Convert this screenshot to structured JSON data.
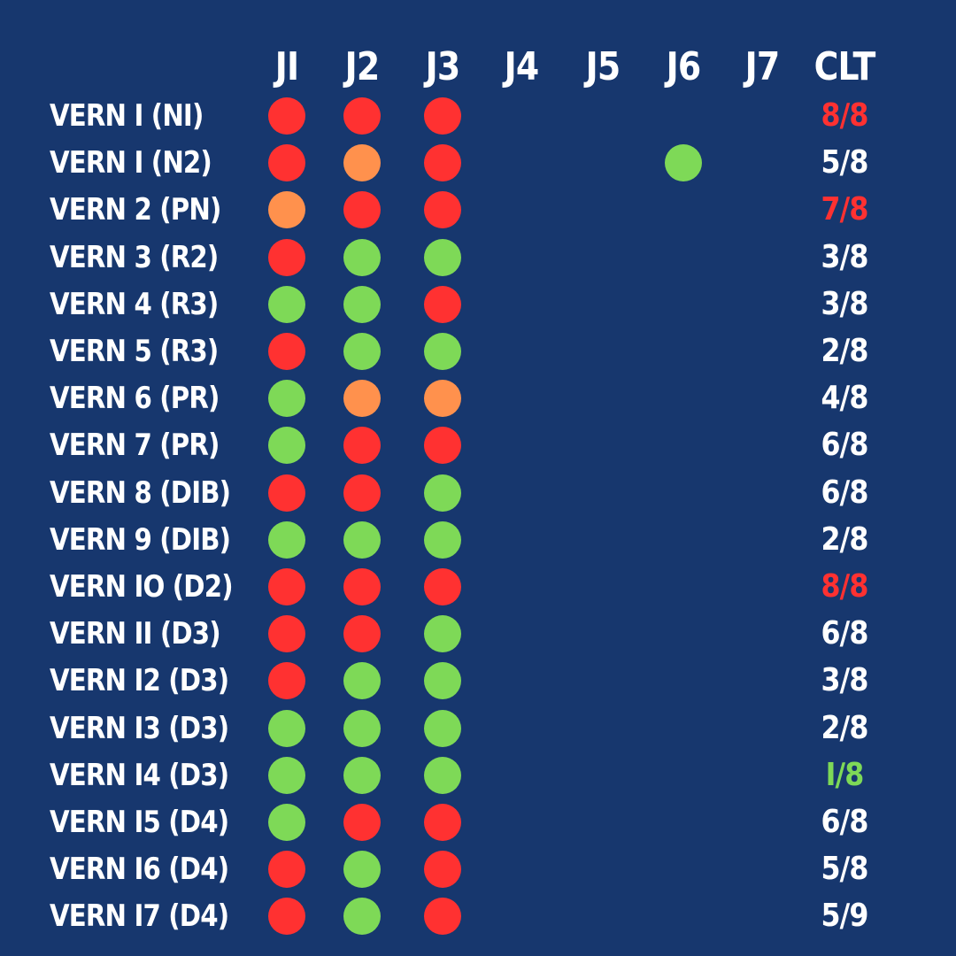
{
  "colors": {
    "background": "#17376e",
    "text": "#ffffff",
    "red": "#ff3131",
    "orange": "#ff914d",
    "green": "#7ed957"
  },
  "columns": [
    "JI",
    "J2",
    "J3",
    "J4",
    "J5",
    "J6",
    "J7",
    "CLT"
  ],
  "rows": [
    {
      "label": "VERN I (NI)",
      "marks": [
        "red",
        "red",
        "red",
        "",
        "",
        "",
        ""
      ],
      "clt": "8/8",
      "clt_color": "red"
    },
    {
      "label": "VERN I (N2)",
      "marks": [
        "red",
        "orange",
        "red",
        "",
        "",
        "green",
        ""
      ],
      "clt": "5/8",
      "clt_color": "white"
    },
    {
      "label": "VERN 2 (PN)",
      "marks": [
        "orange",
        "red",
        "red",
        "",
        "",
        "",
        ""
      ],
      "clt": "7/8",
      "clt_color": "red"
    },
    {
      "label": "VERN 3 (R2)",
      "marks": [
        "red",
        "green",
        "green",
        "",
        "",
        "",
        ""
      ],
      "clt": "3/8",
      "clt_color": "white"
    },
    {
      "label": "VERN 4 (R3)",
      "marks": [
        "green",
        "green",
        "red",
        "",
        "",
        "",
        ""
      ],
      "clt": "3/8",
      "clt_color": "white"
    },
    {
      "label": "VERN 5 (R3)",
      "marks": [
        "red",
        "green",
        "green",
        "",
        "",
        "",
        ""
      ],
      "clt": "2/8",
      "clt_color": "white"
    },
    {
      "label": "VERN 6 (PR)",
      "marks": [
        "green",
        "orange",
        "orange",
        "",
        "",
        "",
        ""
      ],
      "clt": "4/8",
      "clt_color": "white"
    },
    {
      "label": "VERN 7 (PR)",
      "marks": [
        "green",
        "red",
        "red",
        "",
        "",
        "",
        ""
      ],
      "clt": "6/8",
      "clt_color": "white"
    },
    {
      "label": "VERN 8 (DIB)",
      "marks": [
        "red",
        "red",
        "green",
        "",
        "",
        "",
        ""
      ],
      "clt": "6/8",
      "clt_color": "white"
    },
    {
      "label": "VERN 9 (DIB)",
      "marks": [
        "green",
        "green",
        "green",
        "",
        "",
        "",
        ""
      ],
      "clt": "2/8",
      "clt_color": "white"
    },
    {
      "label": "VERN IO (D2)",
      "marks": [
        "red",
        "red",
        "red",
        "",
        "",
        "",
        ""
      ],
      "clt": "8/8",
      "clt_color": "red"
    },
    {
      "label": "VERN II (D3)",
      "marks": [
        "red",
        "red",
        "green",
        "",
        "",
        "",
        ""
      ],
      "clt": "6/8",
      "clt_color": "white"
    },
    {
      "label": "VERN I2 (D3)",
      "marks": [
        "red",
        "green",
        "green",
        "",
        "",
        "",
        ""
      ],
      "clt": "3/8",
      "clt_color": "white"
    },
    {
      "label": "VERN I3 (D3)",
      "marks": [
        "green",
        "green",
        "green",
        "",
        "",
        "",
        ""
      ],
      "clt": "2/8",
      "clt_color": "white"
    },
    {
      "label": "VERN I4 (D3)",
      "marks": [
        "green",
        "green",
        "green",
        "",
        "",
        "",
        ""
      ],
      "clt": "I/8",
      "clt_color": "green"
    },
    {
      "label": "VERN I5 (D4)",
      "marks": [
        "green",
        "red",
        "red",
        "",
        "",
        "",
        ""
      ],
      "clt": "6/8",
      "clt_color": "white"
    },
    {
      "label": "VERN I6 (D4)",
      "marks": [
        "red",
        "green",
        "red",
        "",
        "",
        "",
        ""
      ],
      "clt": "5/8",
      "clt_color": "white"
    },
    {
      "label": "VERN I7 (D4)",
      "marks": [
        "red",
        "green",
        "red",
        "",
        "",
        "",
        ""
      ],
      "clt": "5/9",
      "clt_color": "white"
    }
  ]
}
